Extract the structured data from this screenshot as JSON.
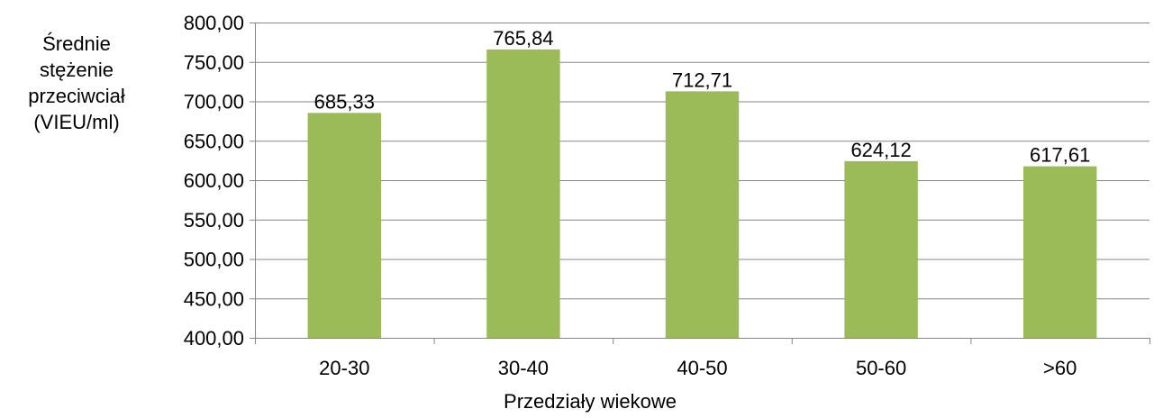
{
  "chart_data": {
    "type": "bar",
    "categories": [
      "20-30",
      "30-40",
      "40-50",
      "50-60",
      ">60"
    ],
    "values": [
      685.33,
      765.84,
      712.71,
      624.12,
      617.61
    ],
    "value_labels": [
      "685,33",
      "765,84",
      "712,71",
      "624,12",
      "617,61"
    ],
    "title": "",
    "xlabel": "Przedziały wiekowe",
    "ylabel_lines": [
      "Średnie",
      "stężenie",
      "przeciwciał",
      "(VIEU/ml)"
    ],
    "ylim": [
      400,
      800
    ],
    "yticks": [
      400,
      450,
      500,
      550,
      600,
      650,
      700,
      750,
      800
    ],
    "ytick_labels": [
      "400,00",
      "450,00",
      "500,00",
      "550,00",
      "600,00",
      "650,00",
      "700,00",
      "750,00",
      "800,00"
    ],
    "grid": true,
    "legend": "none",
    "bar_color": "#9bbb59",
    "grid_color": "#868686"
  }
}
